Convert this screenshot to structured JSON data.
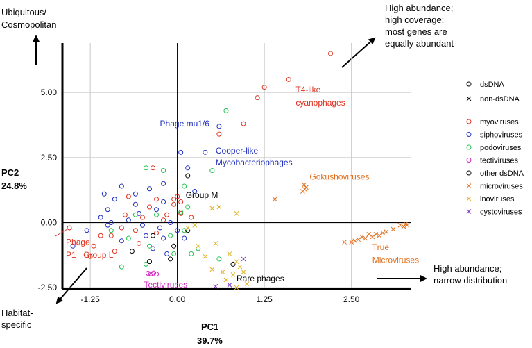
{
  "chart_data": {
    "type": "scatter",
    "xlabel": "PC1",
    "xlabel_pct": "39.7%",
    "ylabel": "PC2",
    "ylabel_pct": "24.8%",
    "xlim": [
      -1.65,
      3.35
    ],
    "ylim": [
      -2.55,
      6.9
    ],
    "x_ticks": [
      {
        "value": -1.25,
        "label": "-1.25"
      },
      {
        "value": 0,
        "label": "0.00"
      },
      {
        "value": 1.25,
        "label": "1.25"
      },
      {
        "value": 2.5,
        "label": "2.50"
      }
    ],
    "y_ticks": [
      {
        "value": -2.5,
        "label": "-2.50"
      },
      {
        "value": 0,
        "label": "0.00"
      },
      {
        "value": 2.5,
        "label": "2.50"
      },
      {
        "value": 5,
        "label": "5.00"
      }
    ],
    "grid": true,
    "legend_position": "right",
    "legend": {
      "shape_entries": [
        {
          "label": "dsDNA",
          "marker": "circle"
        },
        {
          "label": "non-dsDNA",
          "marker": "cross"
        }
      ],
      "color_entries": [
        {
          "label": "myoviruses",
          "marker": "circle",
          "color": "#e0301e"
        },
        {
          "label": "siphoviruses",
          "marker": "circle",
          "color": "#2030c0"
        },
        {
          "label": "podoviruses",
          "marker": "circle",
          "color": "#20c050"
        },
        {
          "label": "tectiviruses",
          "marker": "circle",
          "color": "#d020c0"
        },
        {
          "label": "other dsDNA",
          "marker": "circle",
          "color": "#000000"
        },
        {
          "label": "microviruses",
          "marker": "cross",
          "color": "#e07020"
        },
        {
          "label": "inoviruses",
          "marker": "cross",
          "color": "#e0b020"
        },
        {
          "label": "cystoviruses",
          "marker": "cross",
          "color": "#8030c0"
        }
      ]
    },
    "series": [
      {
        "name": "myoviruses",
        "marker": "circle",
        "color": "#e0301e",
        "points": [
          [
            2.2,
            6.5
          ],
          [
            1.6,
            5.5
          ],
          [
            1.25,
            5.2
          ],
          [
            1.15,
            4.8
          ],
          [
            0.95,
            3.8
          ],
          [
            0.6,
            3.4
          ],
          [
            -0.35,
            2.1
          ],
          [
            -0.7,
            1.0
          ],
          [
            -0.3,
            0.9
          ],
          [
            -0.05,
            0.9
          ],
          [
            -0.05,
            0.7
          ],
          [
            0.05,
            0.8
          ],
          [
            0.0,
            1.0
          ],
          [
            -0.5,
            0.2
          ],
          [
            -0.8,
            -0.2
          ],
          [
            -0.95,
            -0.5
          ],
          [
            -1.2,
            -0.9
          ],
          [
            -1.1,
            -0.5
          ],
          [
            -1.25,
            -1.3
          ],
          [
            -1.55,
            -0.2
          ],
          [
            -0.6,
            -0.3
          ],
          [
            -0.3,
            -0.4
          ],
          [
            -0.15,
            0.3
          ],
          [
            -0.4,
            0.6
          ],
          [
            -0.75,
            0.3
          ],
          [
            -0.55,
            -0.8
          ],
          [
            -0.9,
            -1.1
          ],
          [
            0.2,
            0.2
          ],
          [
            0.05,
            0.35
          ],
          [
            -0.2,
            0.1
          ]
        ]
      },
      {
        "name": "siphoviruses",
        "marker": "circle",
        "color": "#2030c0",
        "points": [
          [
            0.6,
            3.7
          ],
          [
            0.4,
            2.7
          ],
          [
            0.05,
            2.7
          ],
          [
            0.15,
            2.1
          ],
          [
            0.25,
            1.2
          ],
          [
            -0.2,
            1.5
          ],
          [
            -0.6,
            1.1
          ],
          [
            -0.9,
            0.9
          ],
          [
            -1.0,
            0.5
          ],
          [
            -0.7,
            0.1
          ],
          [
            -0.5,
            -0.1
          ],
          [
            -0.3,
            0.5
          ],
          [
            -0.1,
            0.0
          ],
          [
            0.0,
            -0.3
          ],
          [
            -0.2,
            -0.6
          ],
          [
            -0.45,
            -0.5
          ],
          [
            -0.8,
            -0.7
          ],
          [
            -1.0,
            -0.1
          ],
          [
            -1.1,
            0.2
          ],
          [
            -0.6,
            0.7
          ],
          [
            -0.4,
            1.3
          ],
          [
            -0.8,
            1.4
          ],
          [
            -1.05,
            1.1
          ],
          [
            -0.35,
            -1.0
          ],
          [
            -0.15,
            -1.2
          ],
          [
            0.1,
            -0.6
          ],
          [
            -1.3,
            -0.3
          ],
          [
            -1.5,
            -0.9
          ],
          [
            -0.2,
            0.8
          ],
          [
            -0.55,
            0.35
          ],
          [
            -0.95,
            0.0
          ],
          [
            -0.25,
            -0.2
          ]
        ]
      },
      {
        "name": "podoviruses",
        "marker": "circle",
        "color": "#20c050",
        "points": [
          [
            0.7,
            4.3
          ],
          [
            0.5,
            2.0
          ],
          [
            -0.2,
            2.0
          ],
          [
            -0.45,
            2.1
          ],
          [
            0.1,
            1.4
          ],
          [
            0.15,
            0.6
          ],
          [
            0.1,
            -0.3
          ],
          [
            -0.3,
            0.3
          ],
          [
            -0.6,
            0.3
          ],
          [
            -0.7,
            -0.6
          ],
          [
            -0.4,
            -0.9
          ],
          [
            -0.05,
            -1.2
          ],
          [
            -0.1,
            -0.5
          ],
          [
            0.3,
            -1.0
          ],
          [
            0.2,
            -1.2
          ],
          [
            -0.8,
            -1.7
          ],
          [
            -0.45,
            -1.6
          ],
          [
            0.6,
            -1.4
          ],
          [
            -0.95,
            -0.3
          ],
          [
            0.05,
            0.4
          ]
        ]
      },
      {
        "name": "tectiviruses",
        "marker": "circle",
        "color": "#d020c0",
        "points": [
          [
            -0.42,
            -1.95
          ],
          [
            -0.38,
            -1.97
          ],
          [
            -0.34,
            -1.94
          ],
          [
            -0.3,
            -1.98
          ]
        ]
      },
      {
        "name": "other dsDNA",
        "marker": "circle",
        "color": "#000000",
        "points": [
          [
            0.15,
            1.8
          ],
          [
            -0.35,
            -0.5
          ],
          [
            -0.05,
            -0.9
          ],
          [
            0.15,
            -0.3
          ],
          [
            -0.4,
            -1.5
          ],
          [
            -0.1,
            -1.4
          ],
          [
            0.8,
            -1.6
          ],
          [
            -0.65,
            -1.1
          ]
        ]
      },
      {
        "name": "microviruses",
        "marker": "cross",
        "color": "#e07020",
        "points": [
          [
            1.85,
            1.35
          ],
          [
            1.83,
            1.28
          ],
          [
            1.82,
            1.45
          ],
          [
            1.8,
            1.2
          ],
          [
            1.4,
            0.9
          ],
          [
            3.3,
            -0.1
          ],
          [
            3.25,
            -0.15
          ],
          [
            3.28,
            -0.05
          ],
          [
            3.2,
            -0.1
          ],
          [
            3.1,
            -0.25
          ],
          [
            3.0,
            -0.35
          ],
          [
            2.95,
            -0.4
          ],
          [
            2.85,
            -0.45
          ],
          [
            2.8,
            -0.55
          ],
          [
            2.7,
            -0.6
          ],
          [
            2.6,
            -0.65
          ],
          [
            2.55,
            -0.7
          ],
          [
            2.65,
            -0.55
          ],
          [
            2.5,
            -0.75
          ],
          [
            2.4,
            -0.75
          ],
          [
            2.75,
            -0.45
          ],
          [
            2.9,
            -0.5
          ]
        ]
      },
      {
        "name": "inoviruses",
        "marker": "cross",
        "color": "#e0b020",
        "points": [
          [
            0.6,
            0.6
          ],
          [
            0.5,
            0.55
          ],
          [
            0.85,
            0.35
          ],
          [
            0.25,
            -0.1
          ],
          [
            0.15,
            -0.2
          ],
          [
            0.3,
            -0.9
          ],
          [
            0.4,
            -1.3
          ],
          [
            0.55,
            -0.8
          ],
          [
            0.75,
            -1.2
          ],
          [
            0.85,
            -1.5
          ],
          [
            0.9,
            -1.7
          ],
          [
            0.95,
            -1.9
          ],
          [
            0.8,
            -2.0
          ],
          [
            0.7,
            -2.2
          ],
          [
            0.65,
            -1.9
          ],
          [
            1.0,
            -2.35
          ],
          [
            0.85,
            -2.5
          ],
          [
            0.5,
            -1.8
          ]
        ]
      },
      {
        "name": "cystoviruses",
        "marker": "cross",
        "color": "#8030c0",
        "points": [
          [
            0.75,
            -2.4
          ],
          [
            0.95,
            -1.4
          ],
          [
            0.55,
            -2.45
          ]
        ]
      }
    ],
    "annotations": [
      {
        "text": "T4-like",
        "x": 1.7,
        "y": 5.0,
        "color": "#e0301e"
      },
      {
        "text": "cyanophages",
        "x": 1.7,
        "y": 4.5,
        "color": "#e0301e"
      },
      {
        "text": "Phage mu1/6",
        "x": -0.25,
        "y": 3.7,
        "color": "#2030c0"
      },
      {
        "text": "Cooper-like",
        "x": 0.55,
        "y": 2.65,
        "color": "#2030c0"
      },
      {
        "text": "Mycobacteriophages",
        "x": 0.55,
        "y": 2.2,
        "color": "#2030c0"
      },
      {
        "text": "Gokushoviruses",
        "x": 1.9,
        "y": 1.65,
        "color": "#e07020"
      },
      {
        "text": "Group M",
        "x": 0.12,
        "y": 0.95,
        "color": "#000000"
      },
      {
        "text": "Phage",
        "x": -1.6,
        "y": -0.85,
        "color": "#e0301e"
      },
      {
        "text": "P1",
        "x": -1.6,
        "y": -1.35,
        "color": "#e0301e"
      },
      {
        "text": "Group L",
        "x": -1.35,
        "y": -1.35,
        "color": "#e0301e"
      },
      {
        "text": "Tectiviruses",
        "x": -0.48,
        "y": -2.5,
        "color": "#d020c0"
      },
      {
        "text": "Rare phages",
        "x": 0.85,
        "y": -2.25,
        "color": "#000000"
      },
      {
        "text": "True",
        "x": 2.8,
        "y": -1.05,
        "color": "#e07020"
      },
      {
        "text": "Microviruses",
        "x": 2.8,
        "y": -1.55,
        "color": "#e07020"
      }
    ],
    "corner_notes": {
      "top_left": [
        "Ubiquitous/",
        "Cosmopolitan"
      ],
      "top_right": [
        "High abundance;",
        "high coverage;",
        "most genes are",
        "equally abundant"
      ],
      "bottom_left": [
        "Habitat-",
        "specific"
      ],
      "bottom_right": [
        "High abundance;",
        "narrow distribution"
      ]
    }
  }
}
